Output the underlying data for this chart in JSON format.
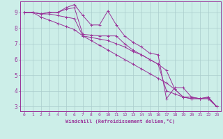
{
  "xlabel": "Windchill (Refroidissement éolien,°C)",
  "background_color": "#cceee8",
  "line_color": "#993399",
  "grid_color": "#aacccc",
  "xlim": [
    -0.5,
    23.5
  ],
  "ylim": [
    2.7,
    9.7
  ],
  "yticks": [
    3,
    4,
    5,
    6,
    7,
    8,
    9
  ],
  "xticks": [
    0,
    1,
    2,
    3,
    4,
    5,
    6,
    7,
    8,
    9,
    10,
    11,
    12,
    13,
    14,
    15,
    16,
    17,
    18,
    19,
    20,
    21,
    22,
    23
  ],
  "series": [
    {
      "x": [
        0,
        1,
        2,
        3,
        4,
        5,
        6,
        7,
        8,
        9,
        10,
        11,
        12,
        13,
        14,
        15,
        16,
        17,
        18,
        19,
        20,
        21,
        22,
        23
      ],
      "y": [
        9.0,
        9.0,
        8.9,
        9.0,
        9.0,
        9.3,
        9.5,
        8.8,
        8.2,
        8.2,
        9.1,
        8.2,
        7.5,
        7.1,
        6.8,
        6.4,
        6.3,
        3.5,
        4.2,
        4.2,
        3.6,
        3.5,
        3.5,
        3.0
      ]
    },
    {
      "x": [
        0,
        1,
        2,
        3,
        4,
        5,
        6,
        7,
        8,
        9,
        10,
        11,
        12,
        13,
        14,
        15,
        16,
        17,
        18,
        19,
        20,
        21,
        22,
        23
      ],
      "y": [
        9.0,
        9.0,
        8.9,
        9.0,
        9.0,
        9.2,
        9.3,
        7.6,
        7.55,
        7.5,
        7.5,
        7.5,
        7.0,
        6.6,
        6.3,
        6.0,
        5.7,
        5.3,
        4.1,
        3.6,
        3.6,
        3.5,
        3.5,
        3.0
      ]
    },
    {
      "x": [
        0,
        1,
        2,
        3,
        4,
        5,
        6,
        7,
        8,
        9,
        10,
        11,
        12,
        13,
        14,
        15,
        16,
        17,
        18,
        19,
        20,
        21,
        22,
        23
      ],
      "y": [
        9.0,
        9.0,
        8.9,
        8.9,
        8.8,
        8.7,
        8.6,
        7.5,
        7.4,
        7.3,
        7.2,
        7.0,
        6.8,
        6.5,
        6.3,
        6.0,
        5.7,
        4.0,
        3.8,
        3.6,
        3.5,
        3.5,
        3.6,
        3.0
      ]
    },
    {
      "x": [
        0,
        1,
        2,
        3,
        4,
        5,
        6,
        7,
        8,
        9,
        10,
        11,
        12,
        13,
        14,
        15,
        16,
        17,
        18,
        19,
        20,
        21,
        22,
        23
      ],
      "y": [
        9.0,
        9.0,
        8.7,
        8.5,
        8.3,
        8.1,
        7.9,
        7.5,
        7.2,
        6.9,
        6.6,
        6.3,
        6.0,
        5.7,
        5.4,
        5.1,
        4.8,
        4.5,
        4.1,
        3.6,
        3.5,
        3.5,
        3.6,
        3.0
      ]
    }
  ]
}
